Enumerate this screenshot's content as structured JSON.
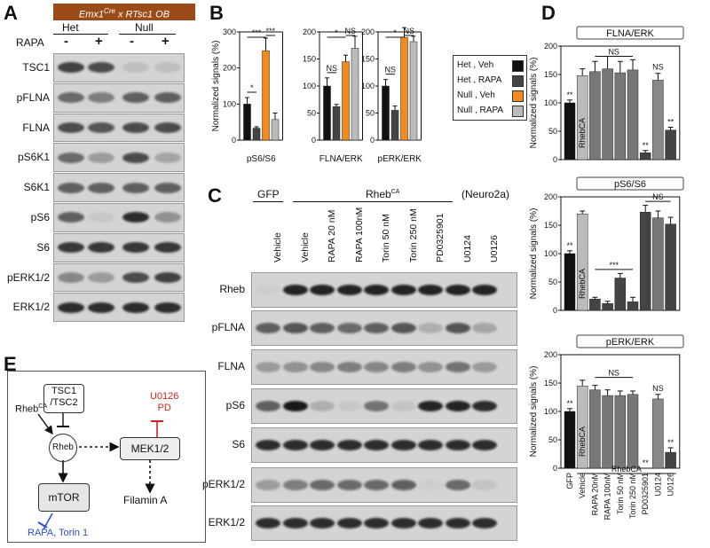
{
  "panel_labels": {
    "a": "A",
    "b": "B",
    "c": "C",
    "d": "D",
    "e": "E"
  },
  "panelA": {
    "header": "Emx1Cre x RTsc1 OB",
    "header_parts": {
      "a": "Emx1",
      "a_sup": "Cre",
      "b": " x R",
      "c": "Tsc1",
      "d": " OB"
    },
    "rapa_label": "RAPA",
    "groups": [
      "Het",
      "Null"
    ],
    "signs": [
      "-",
      "+",
      "-",
      "+"
    ],
    "rows": [
      "TSC1",
      "pFLNA",
      "FLNA",
      "pS6K1",
      "S6K1",
      "pS6",
      "S6",
      "pERK1/2",
      "ERK1/2"
    ],
    "band_intensity": [
      [
        0.75,
        0.7,
        0.12,
        0.12
      ],
      [
        0.55,
        0.45,
        0.6,
        0.6
      ],
      [
        0.7,
        0.65,
        0.7,
        0.7
      ],
      [
        0.55,
        0.3,
        0.7,
        0.25
      ],
      [
        0.6,
        0.6,
        0.6,
        0.6
      ],
      [
        0.6,
        0.08,
        0.85,
        0.35
      ],
      [
        0.8,
        0.8,
        0.8,
        0.8
      ],
      [
        0.4,
        0.3,
        0.7,
        0.75
      ],
      [
        0.85,
        0.85,
        0.85,
        0.85
      ]
    ]
  },
  "legend": [
    {
      "label": "Het , Veh",
      "color": "#111111"
    },
    {
      "label": "Het , RAPA",
      "color": "#444444"
    },
    {
      "label": "Null , Veh",
      "color": "#f28a1e"
    },
    {
      "label": "Null , RAPA",
      "color": "#bbbbbb"
    }
  ],
  "panelC": {
    "group_gfp": "GFP",
    "group_rheb": "RhebCA",
    "group_rheb_parts": {
      "main": "Rheb",
      "sup": "CA"
    },
    "cell_line": "(Neuro2a)",
    "columns": [
      "Vehicle",
      "Vehicle",
      "RAPA 20 nM",
      "RAPA 100nM",
      "Torin 50 nM",
      "Torin 250 nM",
      "PD0325901",
      "U0124",
      "U0126"
    ],
    "rows": [
      "Rheb",
      "pFLNA",
      "FLNA",
      "pS6",
      "S6",
      "pERK1/2",
      "ERK1/2"
    ],
    "band_intensity": [
      [
        0.05,
        0.9,
        0.9,
        0.9,
        0.9,
        0.9,
        0.9,
        0.9,
        0.9
      ],
      [
        0.6,
        0.65,
        0.6,
        0.55,
        0.6,
        0.65,
        0.2,
        0.65,
        0.25
      ],
      [
        0.3,
        0.35,
        0.4,
        0.45,
        0.4,
        0.45,
        0.35,
        0.5,
        0.3
      ],
      [
        0.6,
        0.95,
        0.2,
        0.08,
        0.5,
        0.1,
        0.9,
        0.9,
        0.85
      ],
      [
        0.85,
        0.85,
        0.85,
        0.85,
        0.85,
        0.85,
        0.85,
        0.85,
        0.85
      ],
      [
        0.3,
        0.45,
        0.55,
        0.55,
        0.55,
        0.6,
        0.05,
        0.55,
        0.1
      ],
      [
        0.85,
        0.85,
        0.85,
        0.85,
        0.85,
        0.85,
        0.85,
        0.85,
        0.85
      ]
    ]
  },
  "panelE": {
    "tsc": "TSC1\n/TSC2",
    "tsc_l1": "TSC1",
    "tsc_l2": "/TSC2",
    "rheb_ca": "RhebCA",
    "rheb_ca_parts": {
      "main": "Rheb",
      "sup": "CA"
    },
    "rheb": "Rheb",
    "mek": "MEK1/2",
    "mtor": "mTOR",
    "filamin": "Filamin A",
    "inhib_mek_l1": "U0126",
    "inhib_mek_l2": "PD",
    "inhib_mtor": "RAPA, Torin 1",
    "colors": {
      "mek_inhib": "#d62020",
      "mtor_inhib": "#2a4fd0"
    }
  },
  "chart_data": [
    {
      "id": "B1",
      "type": "bar",
      "title": "pS6/S6",
      "ylabel": "Normalized signals (%)",
      "ylim": [
        0,
        300
      ],
      "yticks": [
        0,
        100,
        200,
        300
      ],
      "categories": [
        "Het , Veh",
        "Het , RAPA",
        "Null , Veh",
        "Null , RAPA"
      ],
      "values": [
        100,
        33,
        248,
        57
      ],
      "errors": [
        18,
        4,
        35,
        18
      ],
      "colors": [
        "#111111",
        "#444444",
        "#f28a1e",
        "#bbbbbb"
      ],
      "annotations": [
        "*",
        "***",
        "***"
      ]
    },
    {
      "id": "B2",
      "type": "bar",
      "title": "FLNA/ERK",
      "ylabel": "",
      "ylim": [
        0,
        200
      ],
      "yticks": [
        0,
        50,
        100,
        150,
        200
      ],
      "categories": [
        "Het , Veh",
        "Het , RAPA",
        "Null , Veh",
        "Null , RAPA"
      ],
      "values": [
        100,
        62,
        145,
        170
      ],
      "errors": [
        15,
        4,
        12,
        22
      ],
      "colors": [
        "#111111",
        "#444444",
        "#f28a1e",
        "#bbbbbb"
      ],
      "annotations": [
        "NS",
        "*",
        "NS"
      ]
    },
    {
      "id": "B3",
      "type": "bar",
      "title": "pERK/ERK",
      "ylabel": "",
      "ylim": [
        0,
        200
      ],
      "yticks": [
        0,
        50,
        100,
        150,
        200
      ],
      "categories": [
        "Het , Veh",
        "Het , RAPA",
        "Null , Veh",
        "Null , RAPA"
      ],
      "values": [
        100,
        55,
        190,
        182
      ],
      "errors": [
        12,
        8,
        18,
        10
      ],
      "colors": [
        "#111111",
        "#444444",
        "#f28a1e",
        "#bbbbbb"
      ],
      "annotations": [
        "NS",
        "*",
        "NS"
      ]
    },
    {
      "id": "D1",
      "type": "bar",
      "title": "FLNA/ERK",
      "ylabel": "Normalized signals (%)",
      "ylim": [
        0,
        200
      ],
      "yticks": [
        0,
        50,
        100,
        150,
        200
      ],
      "categories": [
        "GFP",
        "Vehicle",
        "RAPA 20nM",
        "RAPA 100nM",
        "Torin 50 nM",
        "Torin 250 nM",
        "PD0325901",
        "U0124",
        "U0126"
      ],
      "values": [
        100,
        148,
        155,
        160,
        153,
        158,
        12,
        140,
        52
      ],
      "errors": [
        5,
        12,
        18,
        22,
        20,
        18,
        4,
        12,
        5
      ],
      "colors": [
        "#111111",
        "#bbbbbb",
        "#777777",
        "#777777",
        "#777777",
        "#777777",
        "#444444",
        "#888888",
        "#444444"
      ],
      "bar_stars": [
        "**",
        "",
        "",
        "",
        "",
        "",
        "**",
        "",
        "**"
      ],
      "bracket": "NS",
      "ns_u0124": "NS",
      "inner_label": "RhebCA"
    },
    {
      "id": "D2",
      "type": "bar",
      "title": "pS6/S6",
      "ylabel": "Normalized signals (%)",
      "ylim": [
        0,
        200
      ],
      "yticks": [
        0,
        50,
        100,
        150,
        200
      ],
      "categories": [
        "GFP",
        "Vehicle",
        "RAPA 20nM",
        "RAPA 100nM",
        "Torin 50 nM",
        "Torin 250 nM",
        "PD0325901",
        "U0124",
        "U0126"
      ],
      "values": [
        100,
        170,
        20,
        12,
        57,
        15,
        173,
        163,
        152
      ],
      "errors": [
        5,
        5,
        3,
        4,
        8,
        8,
        12,
        12,
        12
      ],
      "colors": [
        "#111111",
        "#bbbbbb",
        "#444444",
        "#444444",
        "#444444",
        "#444444",
        "#444444",
        "#777777",
        "#444444"
      ],
      "bar_stars": [
        "**",
        "",
        "",
        "",
        "",
        "",
        "",
        "",
        ""
      ],
      "bracket": "***",
      "bracket2": "NS",
      "inner_label": "RhebCA"
    },
    {
      "id": "D3",
      "type": "bar",
      "title": "pERK/ERK",
      "ylabel": "Normalized signals (%)",
      "ylim": [
        0,
        200
      ],
      "yticks": [
        0,
        50,
        100,
        150,
        200
      ],
      "categories": [
        "GFP",
        "Vehicle",
        "RAPA 20nM",
        "RAPA 100nM",
        "Torin 50 nM",
        "Torin 250 nM",
        "PD0325901",
        "U0124",
        "U0126"
      ],
      "values": [
        100,
        145,
        138,
        128,
        128,
        130,
        0,
        122,
        28
      ],
      "errors": [
        5,
        10,
        8,
        10,
        8,
        6,
        0,
        8,
        8
      ],
      "colors": [
        "#111111",
        "#bbbbbb",
        "#777777",
        "#777777",
        "#777777",
        "#777777",
        "#444444",
        "#888888",
        "#444444"
      ],
      "bar_stars": [
        "**",
        "",
        "",
        "",
        "",
        "",
        "**",
        "",
        "**"
      ],
      "bracket": "NS",
      "ns_u0124": "NS",
      "inner_label": "RhebCA"
    }
  ],
  "panelD_xlabel": {
    "gfp": "GFP",
    "rheb": "RhebCA",
    "rheb_parts": {
      "main": "Rheb",
      "sup": "CA"
    }
  }
}
